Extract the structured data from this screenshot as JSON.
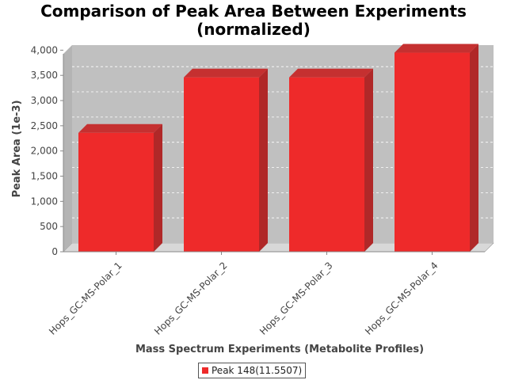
{
  "chart_data": {
    "type": "bar",
    "title_line1": "Comparison of Peak Area Between Experiments",
    "title_line2": "(normalized)",
    "xlabel": "Mass Spectrum Experiments (Metabolite Profiles)",
    "ylabel": "Peak Area (1e-3)",
    "categories": [
      "Hops_GC-MS-Polar_1",
      "Hops_GC-MS-Polar_2",
      "Hops_GC-MS-Polar_3",
      "Hops_GC-MS-Polar_4"
    ],
    "series": [
      {
        "name": "Peak 148(11.5507)",
        "values": [
          2360,
          3460,
          3460,
          3950
        ]
      }
    ],
    "ylim": [
      0,
      4100
    ],
    "yticks": [
      0,
      500,
      1000,
      1500,
      2000,
      2500,
      3000,
      3500,
      4000
    ],
    "ytick_labels": [
      "0",
      "500",
      "1,000",
      "1,500",
      "2,000",
      "2,500",
      "3,000",
      "3,500",
      "4,000"
    ],
    "grid": true,
    "legend_position": "bottom",
    "colors": {
      "bar_front": "#ee2a2a",
      "bar_side": "#b02828",
      "bar_top": "#c53030",
      "plot_bg": "#c0c0c0",
      "floor": "#d8d8d8"
    }
  }
}
